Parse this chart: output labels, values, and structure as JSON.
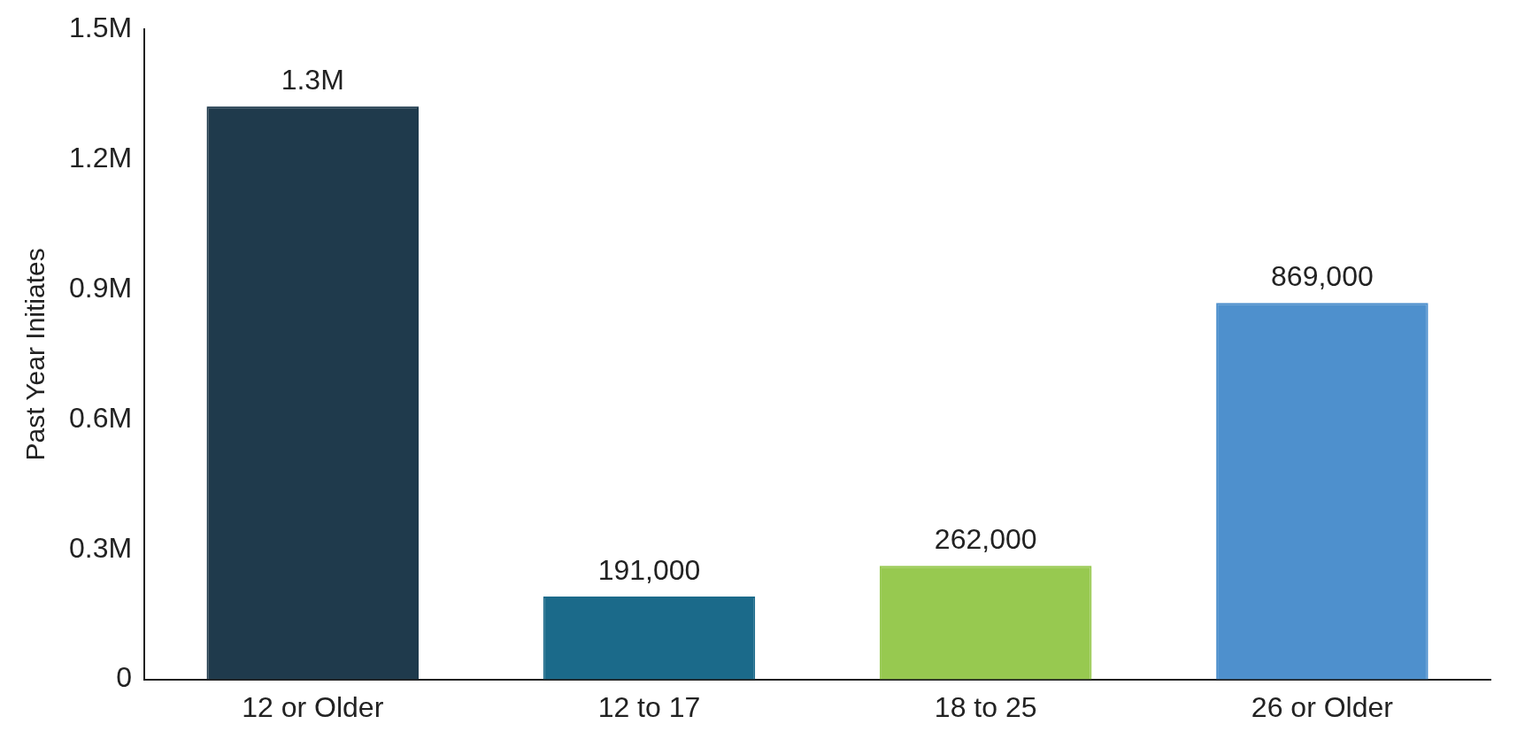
{
  "chart_data": {
    "type": "bar",
    "ylabel": "Past Year Initiates",
    "categories": [
      "12 or Older",
      "12 to 17",
      "18 to 25",
      "26 or Older"
    ],
    "values": [
      1322000,
      191000,
      262000,
      869000
    ],
    "colors": [
      "#1f3a4c",
      "#1b6a8a",
      "#97c950",
      "#4e90cd"
    ],
    "value_labels": [
      "1.3M",
      "191,000",
      "262,000",
      "869,000"
    ],
    "ylim": [
      0,
      1500000
    ],
    "yticks": [
      0,
      {
        "value": 300000,
        "label": "0.3M"
      },
      {
        "value": 600000,
        "label": "0.6M"
      },
      {
        "value": 900000,
        "label": "0.9M"
      },
      {
        "value": 1200000,
        "label": "1.2M"
      },
      {
        "value": 1500000,
        "label": "1.5M"
      }
    ],
    "grid": false,
    "legend": false
  }
}
